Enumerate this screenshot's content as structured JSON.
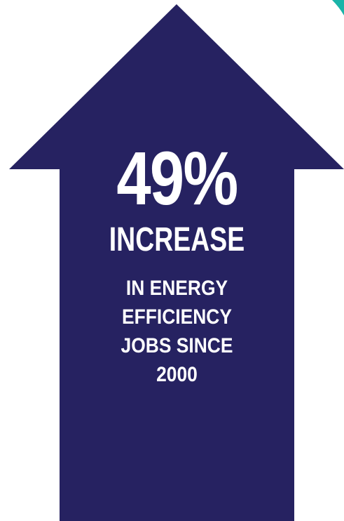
{
  "colors": {
    "arrow": "#262261",
    "text": "#ffffff",
    "accent_corner": "#1ab4a8",
    "background": "#ffffff"
  },
  "icons": {
    "main": "up-arrow-icon",
    "corner": "teal-corner-shape"
  },
  "stat": {
    "value": "49%",
    "label": "INCREASE"
  },
  "description": {
    "lines": [
      "IN ENERGY",
      "EFFICIENCY",
      "JOBS SINCE",
      "2000"
    ]
  }
}
